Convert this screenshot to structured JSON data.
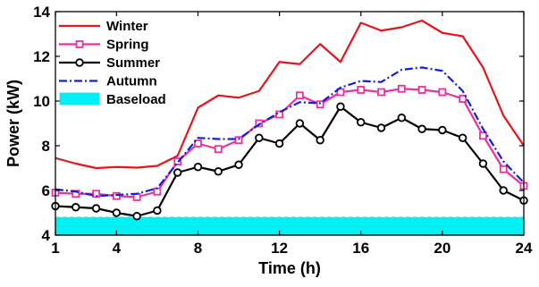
{
  "chart_data": {
    "type": "line",
    "title": "",
    "xlabel": "Time (h)",
    "ylabel": "Power (kW)",
    "xlim": [
      1,
      24
    ],
    "ylim": [
      4,
      14
    ],
    "xticks": [
      1,
      4,
      8,
      12,
      16,
      20,
      24
    ],
    "yticks": [
      4,
      6,
      8,
      10,
      12,
      14
    ],
    "grid": false,
    "legend_position": "top-left",
    "x": [
      1,
      2,
      3,
      4,
      5,
      6,
      7,
      8,
      9,
      10,
      11,
      12,
      13,
      14,
      15,
      16,
      17,
      18,
      19,
      20,
      21,
      22,
      23,
      24
    ],
    "series": [
      {
        "name": "Winter",
        "color": "#e8141b",
        "style": "solid",
        "marker": "none",
        "values": [
          7.45,
          7.2,
          7.0,
          7.05,
          7.02,
          7.1,
          7.55,
          9.7,
          10.25,
          10.15,
          10.45,
          11.75,
          11.65,
          12.55,
          11.75,
          13.5,
          13.15,
          13.3,
          13.6,
          13.05,
          12.9,
          11.5,
          9.35,
          8.0
        ]
      },
      {
        "name": "Spring",
        "color": "#ef2fa0",
        "style": "solid",
        "marker": "square",
        "values": [
          5.9,
          5.85,
          5.85,
          5.75,
          5.7,
          5.95,
          7.3,
          8.1,
          7.85,
          8.25,
          9.0,
          9.4,
          10.25,
          9.85,
          10.4,
          10.5,
          10.4,
          10.55,
          10.5,
          10.4,
          10.1,
          8.45,
          6.95,
          6.2
        ]
      },
      {
        "name": "Summer",
        "color": "#000000",
        "style": "solid",
        "marker": "circle",
        "values": [
          5.3,
          5.25,
          5.2,
          5.0,
          4.85,
          5.1,
          6.8,
          7.05,
          6.85,
          7.15,
          8.35,
          8.1,
          9.0,
          8.25,
          9.75,
          9.05,
          8.8,
          9.25,
          8.75,
          8.7,
          8.35,
          7.2,
          6.0,
          5.55
        ]
      },
      {
        "name": "Autumn",
        "color": "#1020e0",
        "style": "dashdot",
        "marker": "none",
        "values": [
          6.05,
          5.95,
          5.75,
          5.8,
          5.85,
          6.1,
          7.25,
          8.35,
          8.3,
          8.3,
          8.95,
          9.5,
          9.95,
          9.9,
          10.6,
          10.9,
          10.85,
          11.4,
          11.5,
          11.35,
          10.45,
          8.75,
          7.3,
          6.35
        ]
      },
      {
        "name": "Baseload",
        "color": "#00f0f4",
        "style": "area",
        "values": [
          4.8,
          4.8,
          4.8,
          4.8,
          4.8,
          4.8,
          4.8,
          4.8,
          4.8,
          4.8,
          4.8,
          4.8,
          4.8,
          4.8,
          4.8,
          4.8,
          4.8,
          4.8,
          4.8,
          4.8,
          4.8,
          4.8,
          4.8,
          4.8
        ]
      }
    ]
  }
}
